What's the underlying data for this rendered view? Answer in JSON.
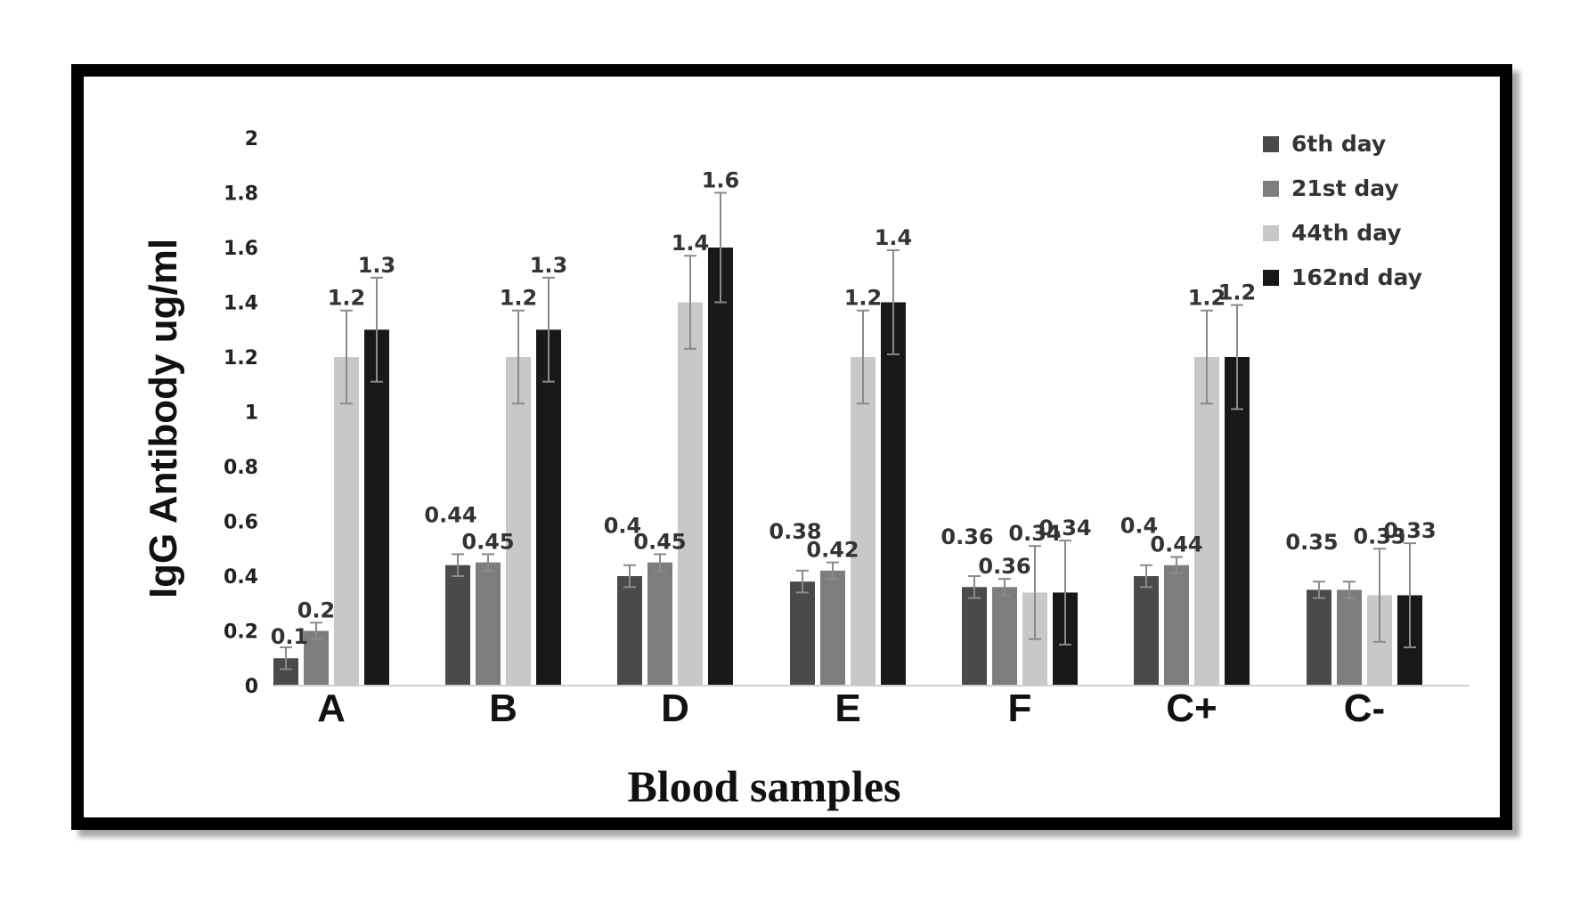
{
  "chart_data": {
    "type": "bar",
    "xlabel": "Blood samples",
    "ylabel": "IgG Antibody ug/ml",
    "ylim": [
      0,
      2
    ],
    "yticks": [
      "0",
      "0.2",
      "0.4",
      "0.6",
      "0.8",
      "1",
      "1.2",
      "1.4",
      "1.6",
      "1.8",
      "2"
    ],
    "categories": [
      "A",
      "B",
      "D",
      "E",
      "F",
      "C+",
      "C-"
    ],
    "legend_position": "top-right",
    "grid": false,
    "series": [
      {
        "name": "6th day",
        "color": "#4a4a4a",
        "values": [
          0.1,
          0.44,
          0.4,
          0.38,
          0.36,
          0.4,
          0.35
        ],
        "labels": [
          "0.1",
          "0.44",
          "0.4",
          "0.38",
          "0.36",
          "0.4",
          "0.35"
        ],
        "errors": [
          0.04,
          0.04,
          0.04,
          0.04,
          0.04,
          0.04,
          0.03
        ]
      },
      {
        "name": "21st day",
        "color": "#7d7d7d",
        "values": [
          0.2,
          0.45,
          0.45,
          0.42,
          0.36,
          0.44,
          0.35
        ],
        "labels": [
          "0.2",
          "0.45",
          "0.45",
          "0.42",
          "0.36",
          "0.44",
          ""
        ],
        "errors": [
          0.03,
          0.03,
          0.03,
          0.03,
          0.03,
          0.03,
          0.03
        ]
      },
      {
        "name": "44th day",
        "color": "#c8c8c8",
        "values": [
          1.2,
          1.2,
          1.4,
          1.2,
          0.34,
          1.2,
          0.33
        ],
        "labels": [
          "1.2",
          "1.2",
          "1.4",
          "1.2",
          "0.34",
          "1.2",
          "0.33"
        ],
        "errors": [
          0.17,
          0.17,
          0.17,
          0.17,
          0.17,
          0.17,
          0.17
        ]
      },
      {
        "name": "162nd day",
        "color": "#181818",
        "values": [
          1.3,
          1.3,
          1.6,
          1.4,
          0.34,
          1.2,
          0.33
        ],
        "labels": [
          "1.3",
          "1.3",
          "1.6",
          "1.4",
          "0.34",
          "1.2",
          "0.33"
        ],
        "errors": [
          0.19,
          0.19,
          0.2,
          0.19,
          0.19,
          0.19,
          0.19
        ]
      }
    ]
  }
}
